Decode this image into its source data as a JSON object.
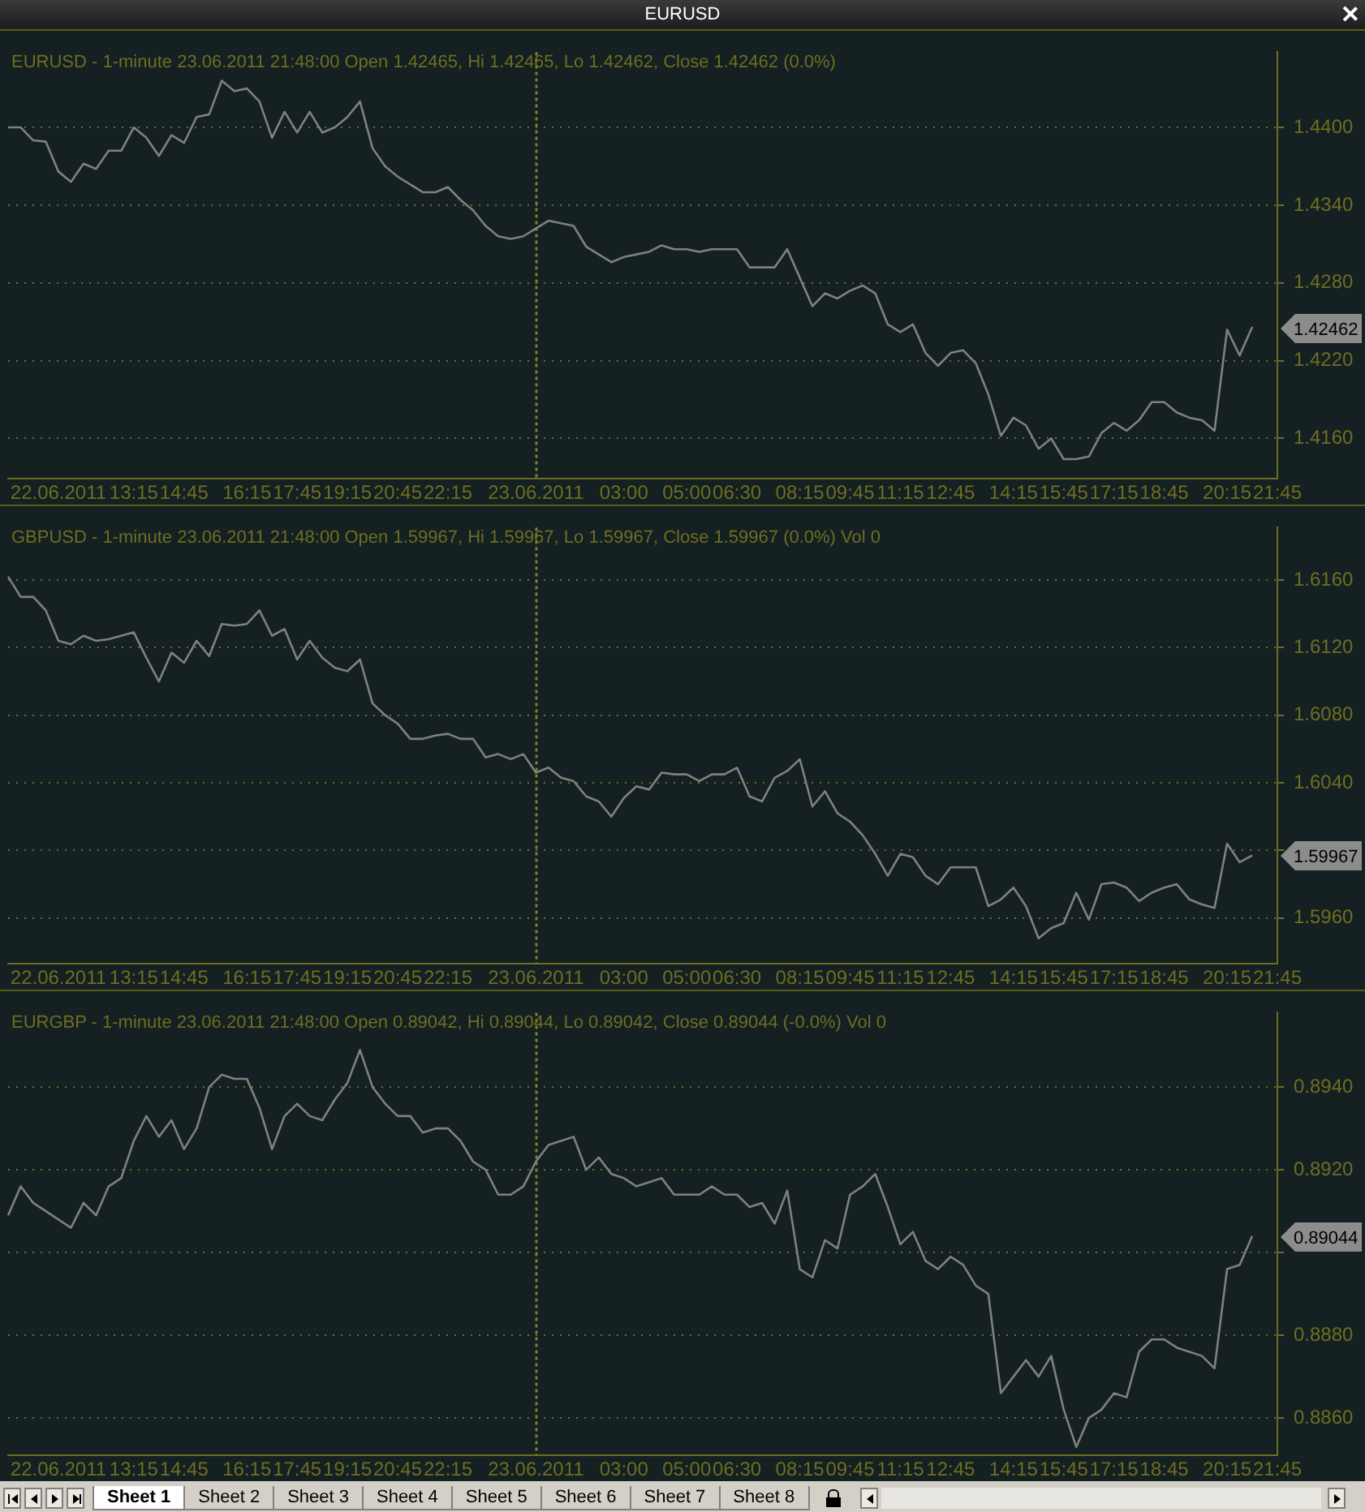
{
  "chart_data": [
    {
      "type": "other",
      "title": "EURUSD"
    },
    {
      "type": "line",
      "title": "EURUSD - 1-minute 23.06.2011 21:48:00 Open 1.42465, Hi 1.42465, Lo 1.42462, Close 1.42462 (0.0%)",
      "categories": [
        null,
        null,
        null,
        null,
        "22.06.2011",
        null,
        null,
        null,
        null,
        null,
        "13:15",
        null,
        null,
        null,
        "14:45",
        null,
        null,
        null,
        null,
        "16:15",
        null,
        null,
        null,
        "17:45",
        null,
        null,
        null,
        "19:15",
        null,
        null,
        null,
        "20:45",
        null,
        null,
        null,
        "22:15",
        null,
        null,
        null,
        null,
        null,
        null,
        "23.06.2011",
        null,
        null,
        null,
        null,
        null,
        null,
        "03:00",
        null,
        null,
        null,
        null,
        "05:00",
        null,
        null,
        null,
        "06:30",
        null,
        null,
        null,
        null,
        "08:15",
        null,
        null,
        null,
        "09:45",
        null,
        null,
        null,
        "11:15",
        null,
        null,
        null,
        "12:45",
        null,
        null,
        null,
        null,
        "14:15",
        null,
        null,
        null,
        "15:45",
        null,
        null,
        null,
        "17:15",
        null,
        null,
        null,
        "18:45",
        null,
        null,
        null,
        null,
        "20:15",
        null,
        null,
        null,
        "21:45"
      ],
      "series": [
        {
          "color": "#808080",
          "values": [
            1.44,
            1.44,
            1.439,
            1.4389,
            1.4366,
            1.4358,
            1.4372,
            1.4368,
            1.4382,
            1.4382,
            1.44,
            1.4392,
            1.4378,
            1.4394,
            1.4388,
            1.4408,
            1.441,
            1.4436,
            1.4428,
            1.443,
            1.442,
            1.4392,
            1.4412,
            1.4396,
            1.4412,
            1.4396,
            1.44,
            1.4408,
            1.442,
            1.4384,
            1.437,
            1.4362,
            1.4356,
            1.435,
            1.435,
            1.4354,
            1.4344,
            1.4336,
            1.4324,
            1.4316,
            1.4314,
            1.4316,
            1.4322,
            1.4328,
            1.4326,
            1.4324,
            1.4308,
            1.4302,
            1.4296,
            1.43,
            1.4302,
            1.4304,
            1.4309,
            1.4306,
            1.4306,
            1.4304,
            1.4306,
            1.4306,
            1.4306,
            1.4292,
            1.4292,
            1.4292,
            1.4306,
            1.4284,
            1.4262,
            1.4272,
            1.4268,
            1.4274,
            1.4278,
            1.4272,
            1.4248,
            1.4242,
            1.4248,
            1.4226,
            1.4216,
            1.4226,
            1.4228,
            1.4218,
            1.4194,
            1.4162,
            1.4176,
            1.417,
            1.4152,
            1.416,
            1.4144,
            1.4144,
            1.4146,
            1.4164,
            1.4172,
            1.4166,
            1.4174,
            1.4188,
            1.4188,
            1.418,
            1.4176,
            1.4174,
            1.4166,
            1.4244,
            1.4224,
            1.4246,
            null,
            null
          ]
        }
      ],
      "ylim": [
        1.4129,
        1.4458
      ],
      "yticks": [
        {
          "value": 1.416,
          "label": "1.4160"
        },
        {
          "value": 1.422,
          "label": "1.4220"
        },
        {
          "value": 1.428,
          "label": "1.4280"
        },
        {
          "value": 1.434,
          "label": "1.4340"
        },
        {
          "value": 1.44,
          "label": "1.4400"
        }
      ],
      "grid": "y",
      "ref_lines": [
        {
          "axis": "x",
          "value": "23.06.2011"
        }
      ],
      "annotations": [
        "1.42462"
      ]
    },
    {
      "type": "line",
      "title": "GBPUSD - 1-minute 23.06.2011 21:48:00 Open 1.59967, Hi 1.59967, Lo 1.59967, Close 1.59967 (0.0%) Vol 0",
      "categories": [
        null,
        null,
        null,
        null,
        "22.06.2011",
        null,
        null,
        null,
        null,
        null,
        "13:15",
        null,
        null,
        null,
        "14:45",
        null,
        null,
        null,
        null,
        "16:15",
        null,
        null,
        null,
        "17:45",
        null,
        null,
        null,
        "19:15",
        null,
        null,
        null,
        "20:45",
        null,
        null,
        null,
        "22:15",
        null,
        null,
        null,
        null,
        null,
        null,
        "23.06.2011",
        null,
        null,
        null,
        null,
        null,
        null,
        "03:00",
        null,
        null,
        null,
        null,
        "05:00",
        null,
        null,
        null,
        "06:30",
        null,
        null,
        null,
        null,
        "08:15",
        null,
        null,
        null,
        "09:45",
        null,
        null,
        null,
        "11:15",
        null,
        null,
        null,
        "12:45",
        null,
        null,
        null,
        null,
        "14:15",
        null,
        null,
        null,
        "15:45",
        null,
        null,
        null,
        "17:15",
        null,
        null,
        null,
        "18:45",
        null,
        null,
        null,
        null,
        "20:15",
        null,
        null,
        null,
        "21:45"
      ],
      "series": [
        {
          "color": "#808080",
          "values": [
            1.6162,
            1.615,
            1.615,
            1.6142,
            1.6124,
            1.6122,
            1.6127,
            1.6124,
            1.6125,
            1.6127,
            1.6129,
            1.6114,
            1.61,
            1.6117,
            1.6111,
            1.6124,
            1.6115,
            1.6134,
            1.6133,
            1.6134,
            1.6142,
            1.6127,
            1.6131,
            1.6113,
            1.6124,
            1.6114,
            1.6108,
            1.6106,
            1.6113,
            1.6087,
            1.608,
            1.6075,
            1.6066,
            1.6066,
            1.6068,
            1.6069,
            1.6066,
            1.6066,
            1.6055,
            1.6057,
            1.6054,
            1.6057,
            1.6046,
            1.6049,
            1.6043,
            1.6041,
            1.6032,
            1.6029,
            1.602,
            1.6031,
            1.6038,
            1.6036,
            1.6046,
            1.6045,
            1.6045,
            1.6041,
            1.6045,
            1.6045,
            1.6049,
            1.6032,
            1.6029,
            1.6043,
            1.6047,
            1.6054,
            1.6026,
            1.6035,
            1.6022,
            1.6017,
            1.6009,
            1.5998,
            1.5985,
            1.5998,
            1.5996,
            1.5985,
            1.598,
            1.599,
            1.599,
            1.599,
            1.5967,
            1.5971,
            1.5978,
            1.5967,
            1.5948,
            1.5954,
            1.5957,
            1.5975,
            1.5959,
            1.598,
            1.5981,
            1.5978,
            1.597,
            1.5975,
            1.5978,
            1.598,
            1.5971,
            1.5968,
            1.5966,
            1.6004,
            1.5993,
            1.5997,
            null,
            null
          ]
        }
      ],
      "ylim": [
        1.5933,
        1.6191
      ],
      "yticks": [
        {
          "value": 1.596,
          "label": "1.5960"
        },
        {
          "value": 1.6,
          "label": null
        },
        {
          "value": 1.604,
          "label": "1.6040"
        },
        {
          "value": 1.608,
          "label": "1.6080"
        },
        {
          "value": 1.612,
          "label": "1.6120"
        },
        {
          "value": 1.616,
          "label": "1.6160"
        }
      ],
      "grid": "y",
      "ref_lines": [
        {
          "axis": "x",
          "value": "23.06.2011"
        }
      ],
      "annotations": [
        "1.59967"
      ]
    },
    {
      "type": "line",
      "title": "EURGBP - 1-minute 23.06.2011 21:48:00 Open 0.89042, Hi 0.89044, Lo 0.89042, Close 0.89044 (-0.0%) Vol 0",
      "categories": [
        null,
        null,
        null,
        null,
        "22.06.2011",
        null,
        null,
        null,
        null,
        null,
        "13:15",
        null,
        null,
        null,
        "14:45",
        null,
        null,
        null,
        null,
        "16:15",
        null,
        null,
        null,
        "17:45",
        null,
        null,
        null,
        "19:15",
        null,
        null,
        null,
        "20:45",
        null,
        null,
        null,
        "22:15",
        null,
        null,
        null,
        null,
        null,
        null,
        "23.06.2011",
        null,
        null,
        null,
        null,
        null,
        null,
        "03:00",
        null,
        null,
        null,
        null,
        "05:00",
        null,
        null,
        null,
        "06:30",
        null,
        null,
        null,
        null,
        "08:15",
        null,
        null,
        null,
        "09:45",
        null,
        null,
        null,
        "11:15",
        null,
        null,
        null,
        "12:45",
        null,
        null,
        null,
        null,
        "14:15",
        null,
        null,
        null,
        "15:45",
        null,
        null,
        null,
        "17:15",
        null,
        null,
        null,
        "18:45",
        null,
        null,
        null,
        null,
        "20:15",
        null,
        null,
        null,
        "21:45"
      ],
      "series": [
        {
          "color": "#808080",
          "values": [
            0.8909,
            0.8916,
            0.8912,
            0.891,
            0.8908,
            0.8906,
            0.8912,
            0.8909,
            0.8916,
            0.8918,
            0.8927,
            0.8933,
            0.8928,
            0.8932,
            0.8925,
            0.893,
            0.894,
            0.8943,
            0.8942,
            0.8942,
            0.8935,
            0.8925,
            0.8933,
            0.8936,
            0.8933,
            0.8932,
            0.8937,
            0.8941,
            0.8949,
            0.894,
            0.8936,
            0.8933,
            0.8933,
            0.8929,
            0.893,
            0.893,
            0.8927,
            0.8922,
            0.892,
            0.8914,
            0.8914,
            0.8916,
            0.8922,
            0.8926,
            0.8927,
            0.8928,
            0.892,
            0.8923,
            0.8919,
            0.8918,
            0.8916,
            0.8917,
            0.8918,
            0.8914,
            0.8914,
            0.8914,
            0.8916,
            0.8914,
            0.8914,
            0.8911,
            0.8912,
            0.8907,
            0.8915,
            0.8896,
            0.8894,
            0.8903,
            0.8901,
            0.8914,
            0.8916,
            0.8919,
            0.8911,
            0.8902,
            0.8905,
            0.8898,
            0.8896,
            0.8899,
            0.8897,
            0.8892,
            0.889,
            0.8866,
            0.887,
            0.8874,
            0.887,
            0.8875,
            0.8862,
            0.8853,
            0.886,
            0.8862,
            0.8866,
            0.8865,
            0.8876,
            0.8879,
            0.8879,
            0.8877,
            0.8876,
            0.8875,
            0.8872,
            0.8896,
            0.8897,
            0.8904,
            null,
            null
          ]
        }
      ],
      "ylim": [
        0.8851,
        0.8958
      ],
      "yticks": [
        {
          "value": 0.886,
          "label": "0.8860"
        },
        {
          "value": 0.888,
          "label": "0.8880"
        },
        {
          "value": 0.89,
          "label": null
        },
        {
          "value": 0.892,
          "label": "0.8920"
        },
        {
          "value": 0.894,
          "label": "0.8940"
        }
      ],
      "grid": "y",
      "ref_lines": [
        {
          "axis": "x",
          "value": "23.06.2011"
        }
      ],
      "annotations": [
        "0.89044"
      ]
    },
    {
      "type": "other",
      "annotations": [
        "Sheet 1",
        "Sheet 2",
        "Sheet 3",
        "Sheet 4",
        "Sheet 5",
        "Sheet 6",
        "Sheet 7",
        "Sheet 8"
      ]
    }
  ]
}
